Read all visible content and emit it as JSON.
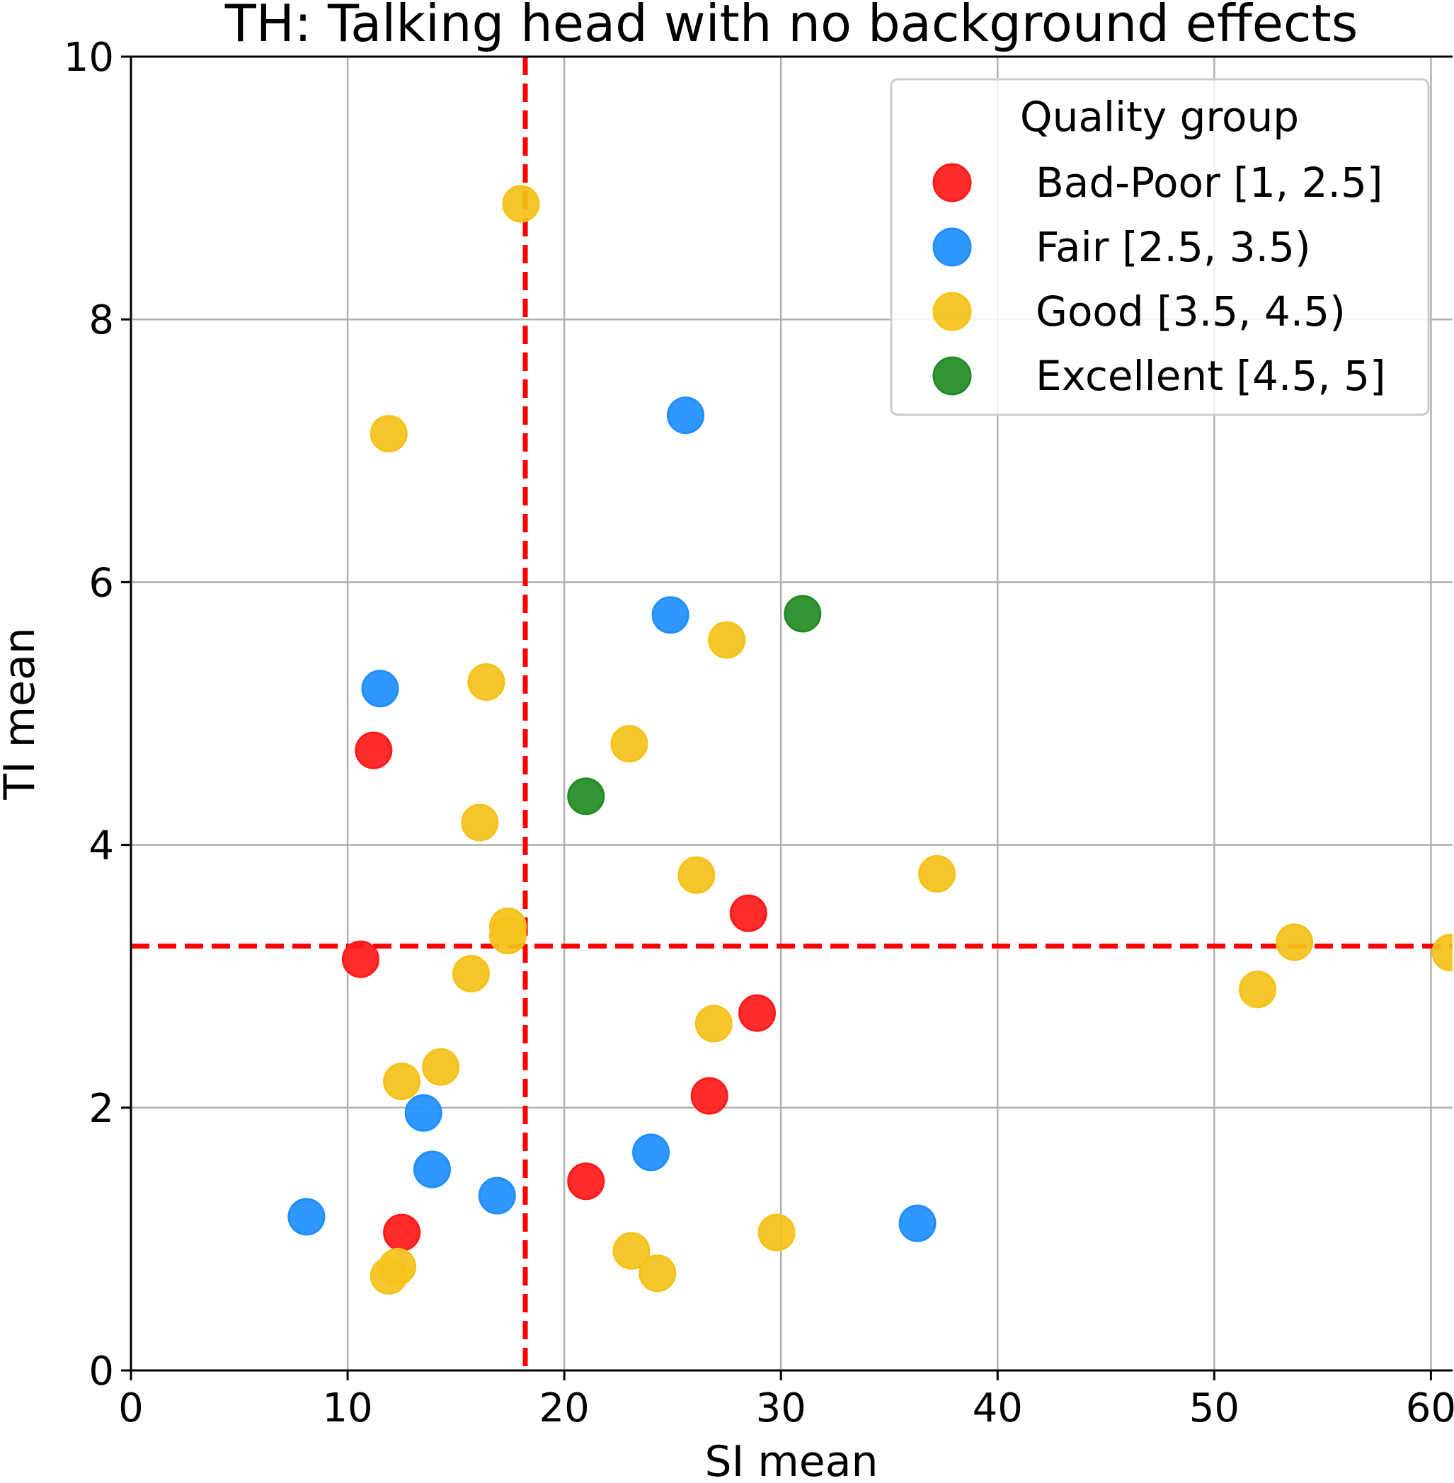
{
  "chart_data": {
    "type": "scatter",
    "title": "TH: Talking head with no background effects",
    "xlabel": "SI mean",
    "ylabel": "TI mean",
    "xlim": [
      0,
      61
    ],
    "ylim": [
      0,
      10
    ],
    "xticks": [
      0,
      10,
      20,
      30,
      40,
      50,
      60
    ],
    "yticks": [
      0,
      2,
      4,
      6,
      8,
      10
    ],
    "grid": true,
    "legend": {
      "title": "Quality group",
      "placement": "upper right"
    },
    "reference_lines": {
      "vertical_x": 18.2,
      "horizontal_y": 3.23,
      "color": "#ff0000",
      "style": "dashed"
    },
    "series": [
      {
        "name": "Bad-Poor [1, 2.5]",
        "color": "#ff1a1a",
        "points": [
          {
            "x": 11.2,
            "y": 4.72
          },
          {
            "x": 10.6,
            "y": 3.13
          },
          {
            "x": 12.5,
            "y": 1.05
          },
          {
            "x": 21.0,
            "y": 1.44
          },
          {
            "x": 26.7,
            "y": 2.09
          },
          {
            "x": 28.5,
            "y": 3.48
          },
          {
            "x": 28.9,
            "y": 2.72
          }
        ]
      },
      {
        "name": "Fair [2.5, 3.5)",
        "color": "#1f8fff",
        "points": [
          {
            "x": 8.1,
            "y": 1.17
          },
          {
            "x": 11.5,
            "y": 5.19
          },
          {
            "x": 13.5,
            "y": 1.96
          },
          {
            "x": 13.9,
            "y": 1.53
          },
          {
            "x": 16.9,
            "y": 1.33
          },
          {
            "x": 24.0,
            "y": 1.66
          },
          {
            "x": 24.9,
            "y": 5.75
          },
          {
            "x": 25.6,
            "y": 7.27
          },
          {
            "x": 36.3,
            "y": 1.12
          }
        ]
      },
      {
        "name": "Good [3.5, 4.5)",
        "color": "#f5c21b",
        "points": [
          {
            "x": 18.0,
            "y": 8.88
          },
          {
            "x": 11.9,
            "y": 7.13
          },
          {
            "x": 16.4,
            "y": 5.24
          },
          {
            "x": 16.1,
            "y": 4.17
          },
          {
            "x": 17.4,
            "y": 3.38
          },
          {
            "x": 17.4,
            "y": 3.31
          },
          {
            "x": 15.7,
            "y": 3.02
          },
          {
            "x": 14.3,
            "y": 2.31
          },
          {
            "x": 12.5,
            "y": 2.2
          },
          {
            "x": 12.3,
            "y": 0.79
          },
          {
            "x": 11.9,
            "y": 0.72
          },
          {
            "x": 23.0,
            "y": 4.77
          },
          {
            "x": 27.5,
            "y": 5.56
          },
          {
            "x": 26.1,
            "y": 3.77
          },
          {
            "x": 26.9,
            "y": 2.64
          },
          {
            "x": 23.1,
            "y": 0.91
          },
          {
            "x": 24.3,
            "y": 0.74
          },
          {
            "x": 29.8,
            "y": 1.05
          },
          {
            "x": 37.2,
            "y": 3.78
          },
          {
            "x": 52.0,
            "y": 2.9
          },
          {
            "x": 53.7,
            "y": 3.26
          },
          {
            "x": 60.9,
            "y": 3.18
          }
        ]
      },
      {
        "name": "Excellent [4.5, 5]",
        "color": "#228b22",
        "points": [
          {
            "x": 21.0,
            "y": 4.37
          },
          {
            "x": 31.0,
            "y": 5.76
          }
        ]
      }
    ]
  }
}
